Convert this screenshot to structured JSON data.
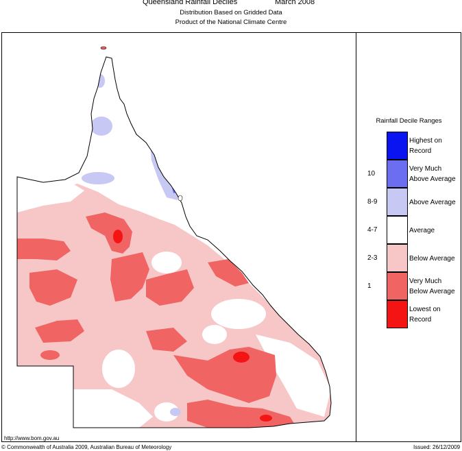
{
  "header": {
    "title": "Queensland Rainfall Deciles",
    "period": "March 2008",
    "subtitle_line1": "Distribution Based on Gridded Data",
    "subtitle_line2": "Product of the National Climate Centre"
  },
  "legend": {
    "title": "Rainfall Decile Ranges",
    "items": [
      {
        "range": "",
        "label_line1": "Highest on",
        "label_line2": "Record",
        "color": "#0a14f0"
      },
      {
        "range": "10",
        "label_line1": "Very Much",
        "label_line2": "Above Average",
        "color": "#6b6ef0"
      },
      {
        "range": "8-9",
        "label_line1": "Above Average",
        "label_line2": "",
        "color": "#c8c8f5"
      },
      {
        "range": "4-7",
        "label_line1": "Average",
        "label_line2": "",
        "color": "#ffffff"
      },
      {
        "range": "2-3",
        "label_line1": "Below Average",
        "label_line2": "",
        "color": "#f7c7c7"
      },
      {
        "range": "1",
        "label_line1": "Very Much",
        "label_line2": "Below Average",
        "color": "#f06464"
      },
      {
        "range": "",
        "label_line1": "Lowest on",
        "label_line2": "Record",
        "color": "#f51414"
      }
    ]
  },
  "footer": {
    "url": "http://www.bom.gov.au",
    "copyright": "© Commonwealth of Australia 2009, Australian Bureau of Meteorology",
    "issued": "Issued: 26/12/2009"
  },
  "colors": {
    "outline": "#000000",
    "below_average": "#f7c7c7",
    "very_much_below": "#f06464",
    "lowest_on_record": "#f51414",
    "above_average": "#c8c8f5",
    "very_much_above": "#6b6ef0"
  }
}
